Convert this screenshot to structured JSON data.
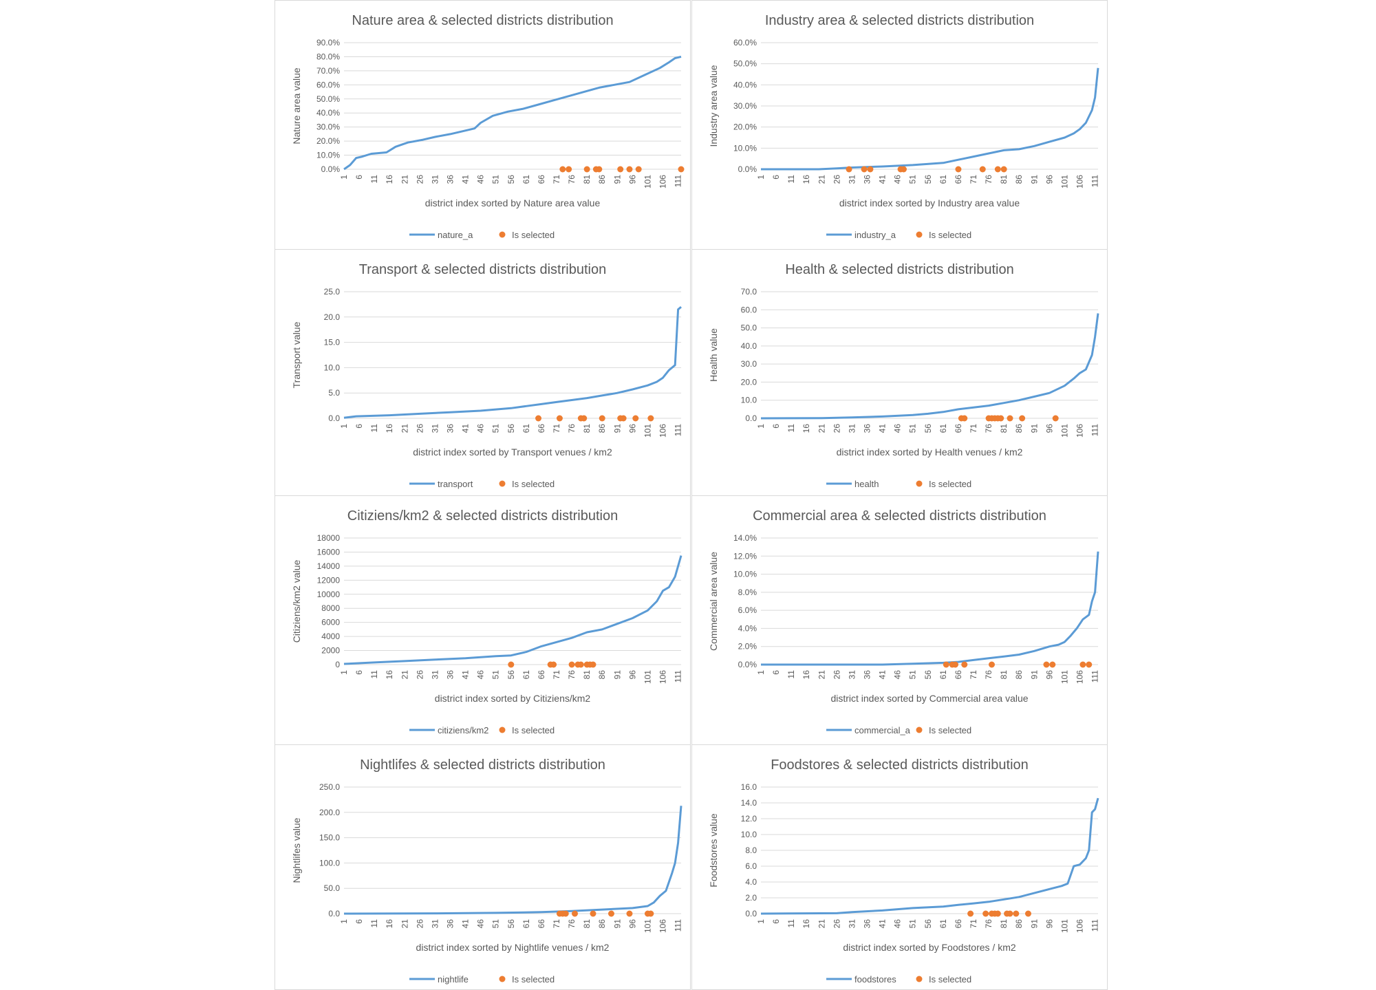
{
  "colors": {
    "line": "#5b9bd5",
    "dot": "#ed7d31",
    "grid": "#d9d9d9",
    "text": "#595959",
    "title": "#595959"
  },
  "x_tick_labels": [
    "1",
    "6",
    "11",
    "16",
    "21",
    "26",
    "31",
    "36",
    "41",
    "46",
    "51",
    "56",
    "61",
    "66",
    "71",
    "76",
    "81",
    "86",
    "91",
    "96",
    "101",
    "106",
    "111"
  ],
  "chart_data": [
    {
      "type": "line",
      "title": "Nature area & selected districts distribution",
      "xlabel": "district index sorted by Nature area value",
      "ylabel": "Nature area value",
      "x_range": [
        1,
        112
      ],
      "ylim": [
        0,
        0.9
      ],
      "y_ticks": [
        "0.0%",
        "10.0%",
        "20.0%",
        "30.0%",
        "40.0%",
        "50.0%",
        "60.0%",
        "70.0%",
        "80.0%",
        "90.0%"
      ],
      "grid": true,
      "legend": "bottom",
      "series": [
        {
          "name": "nature_a",
          "kind": "line",
          "x": [
            1,
            3,
            5,
            7,
            10,
            15,
            18,
            22,
            27,
            31,
            36,
            40,
            44,
            46,
            50,
            55,
            60,
            65,
            70,
            75,
            80,
            85,
            90,
            95,
            100,
            105,
            108,
            110,
            112
          ],
          "values": [
            0.0,
            0.03,
            0.08,
            0.09,
            0.11,
            0.12,
            0.16,
            0.19,
            0.21,
            0.23,
            0.25,
            0.27,
            0.29,
            0.33,
            0.38,
            0.41,
            0.43,
            0.46,
            0.49,
            0.52,
            0.55,
            0.58,
            0.6,
            0.62,
            0.67,
            0.72,
            0.76,
            0.79,
            0.8
          ]
        },
        {
          "name": "Is selected",
          "kind": "scatter",
          "x": [
            73,
            75,
            81,
            84,
            85,
            92,
            95,
            98,
            112
          ],
          "values": [
            0,
            0,
            0,
            0,
            0,
            0,
            0,
            0,
            0
          ]
        }
      ]
    },
    {
      "type": "line",
      "title": "Industry area & selected districts distribution",
      "xlabel": "district index sorted by Industry area value",
      "ylabel": "Industry area value",
      "x_range": [
        1,
        112
      ],
      "ylim": [
        0,
        0.6
      ],
      "y_ticks": [
        "0.0%",
        "10.0%",
        "20.0%",
        "30.0%",
        "40.0%",
        "50.0%",
        "60.0%"
      ],
      "grid": true,
      "legend": "bottom",
      "series": [
        {
          "name": "industry_a",
          "kind": "line",
          "x": [
            1,
            20,
            26,
            31,
            41,
            51,
            61,
            66,
            71,
            76,
            81,
            86,
            91,
            96,
            101,
            104,
            106,
            108,
            110,
            111,
            112
          ],
          "values": [
            0.0,
            0.0,
            0.004,
            0.008,
            0.013,
            0.02,
            0.03,
            0.045,
            0.06,
            0.075,
            0.09,
            0.095,
            0.11,
            0.13,
            0.15,
            0.17,
            0.19,
            0.22,
            0.28,
            0.34,
            0.48
          ]
        },
        {
          "name": "Is selected",
          "kind": "scatter",
          "x": [
            30,
            35,
            37,
            47,
            48,
            66,
            74,
            79,
            81
          ],
          "values": [
            0,
            0,
            0,
            0,
            0,
            0,
            0,
            0,
            0
          ]
        }
      ]
    },
    {
      "type": "line",
      "title": "Transport & selected districts distribution",
      "xlabel": "district index sorted by Transport venues / km2",
      "ylabel": "Transport value",
      "x_range": [
        1,
        112
      ],
      "ylim": [
        0,
        25
      ],
      "y_ticks": [
        "0.0",
        "5.0",
        "10.0",
        "15.0",
        "20.0",
        "25.0"
      ],
      "grid": true,
      "legend": "bottom",
      "series": [
        {
          "name": "transport",
          "kind": "line",
          "x": [
            1,
            5,
            16,
            26,
            36,
            46,
            56,
            61,
            66,
            71,
            76,
            81,
            86,
            91,
            96,
            101,
            104,
            106,
            108,
            110,
            111,
            112
          ],
          "values": [
            0.1,
            0.4,
            0.6,
            0.9,
            1.2,
            1.5,
            2.0,
            2.4,
            2.8,
            3.2,
            3.6,
            4.0,
            4.5,
            5.0,
            5.7,
            6.5,
            7.2,
            8.0,
            9.5,
            10.5,
            21.5,
            22.0
          ]
        },
        {
          "name": "Is selected",
          "kind": "scatter",
          "x": [
            65,
            72,
            79,
            80,
            86,
            92,
            93,
            97,
            102
          ],
          "values": [
            0,
            0,
            0,
            0,
            0,
            0,
            0,
            0,
            0
          ]
        }
      ]
    },
    {
      "type": "line",
      "title": "Health & selected districts distribution",
      "xlabel": "district index sorted by Health venues / km2",
      "ylabel": "Health value",
      "x_range": [
        1,
        112
      ],
      "ylim": [
        0,
        70
      ],
      "y_ticks": [
        "0.0",
        "10.0",
        "20.0",
        "30.0",
        "40.0",
        "50.0",
        "60.0",
        "70.0"
      ],
      "grid": true,
      "legend": "bottom",
      "series": [
        {
          "name": "health",
          "kind": "line",
          "x": [
            1,
            21,
            31,
            41,
            51,
            56,
            61,
            66,
            71,
            76,
            81,
            86,
            91,
            96,
            101,
            104,
            106,
            108,
            110,
            111,
            112
          ],
          "values": [
            0.0,
            0.1,
            0.5,
            1.0,
            1.8,
            2.5,
            3.5,
            5.0,
            6.0,
            7.0,
            8.5,
            10.0,
            12.0,
            14.0,
            18.0,
            22.0,
            25.0,
            27.0,
            35.0,
            45.0,
            58.0
          ]
        },
        {
          "name": "Is selected",
          "kind": "scatter",
          "x": [
            67,
            68,
            76,
            77,
            78,
            79,
            80,
            83,
            87,
            98
          ],
          "values": [
            0,
            0,
            0,
            0,
            0,
            0,
            0,
            0,
            0,
            0
          ]
        }
      ]
    },
    {
      "type": "line",
      "title": "Citiziens/km2 & selected districts distribution",
      "xlabel": "district index sorted by Citiziens/km2",
      "ylabel": "Citiziens/km2 value",
      "x_range": [
        1,
        112
      ],
      "ylim": [
        0,
        18000
      ],
      "y_ticks": [
        "0",
        "2000",
        "4000",
        "6000",
        "8000",
        "10000",
        "12000",
        "14000",
        "16000",
        "18000"
      ],
      "grid": true,
      "legend": "bottom",
      "series": [
        {
          "name": "citiziens/km2",
          "kind": "line",
          "x": [
            1,
            11,
            21,
            31,
            41,
            51,
            56,
            61,
            66,
            71,
            76,
            81,
            86,
            91,
            96,
            101,
            104,
            106,
            108,
            110,
            112
          ],
          "values": [
            100,
            300,
            500,
            700,
            900,
            1200,
            1300,
            1800,
            2600,
            3200,
            3800,
            4600,
            5000,
            5800,
            6600,
            7700,
            9000,
            10500,
            11000,
            12500,
            15500
          ]
        },
        {
          "name": "Is selected",
          "kind": "scatter",
          "x": [
            56,
            69,
            70,
            76,
            78,
            79,
            81,
            82,
            83
          ],
          "values": [
            0,
            0,
            0,
            0,
            0,
            0,
            0,
            0,
            0
          ]
        }
      ]
    },
    {
      "type": "line",
      "title": "Commercial area & selected districts distribution",
      "xlabel": "district index sorted by Commercial area value",
      "ylabel": "Commercial area value",
      "x_range": [
        1,
        112
      ],
      "ylim": [
        0,
        0.14
      ],
      "y_ticks": [
        "0.0%",
        "2.0%",
        "4.0%",
        "6.0%",
        "8.0%",
        "10.0%",
        "12.0%",
        "14.0%"
      ],
      "grid": true,
      "legend": "bottom",
      "series": [
        {
          "name": "commercial_a",
          "kind": "line",
          "x": [
            1,
            41,
            51,
            61,
            66,
            71,
            76,
            81,
            86,
            91,
            96,
            99,
            101,
            103,
            105,
            107,
            109,
            110,
            111,
            112
          ],
          "values": [
            0.0,
            0.0,
            0.001,
            0.002,
            0.003,
            0.005,
            0.007,
            0.009,
            0.011,
            0.015,
            0.02,
            0.022,
            0.025,
            0.032,
            0.04,
            0.05,
            0.055,
            0.07,
            0.08,
            0.125
          ]
        },
        {
          "name": "Is selected",
          "kind": "scatter",
          "x": [
            62,
            64,
            65,
            68,
            77,
            95,
            97,
            107,
            109
          ],
          "values": [
            0,
            0,
            0,
            0,
            0,
            0,
            0,
            0,
            0
          ]
        }
      ]
    },
    {
      "type": "line",
      "title": "Nightlifes & selected districts distribution",
      "xlabel": "district index sorted by Nightlife venues / km2",
      "ylabel": "Nightlifes value",
      "x_range": [
        1,
        112
      ],
      "ylim": [
        0,
        250
      ],
      "y_ticks": [
        "0.0",
        "50.0",
        "100.0",
        "150.0",
        "200.0",
        "250.0"
      ],
      "grid": true,
      "legend": "bottom",
      "series": [
        {
          "name": "nightlife",
          "kind": "line",
          "x": [
            1,
            31,
            51,
            66,
            76,
            86,
            96,
            101,
            103,
            105,
            107,
            109,
            110,
            111,
            112
          ],
          "values": [
            0.0,
            0.5,
            1.5,
            3.0,
            5.0,
            8.0,
            11.0,
            15.0,
            22.0,
            35.0,
            45.0,
            80.0,
            100.0,
            140.0,
            213.0
          ]
        },
        {
          "name": "Is selected",
          "kind": "scatter",
          "x": [
            72,
            73,
            74,
            77,
            83,
            89,
            95,
            101,
            102
          ],
          "values": [
            0,
            0,
            0,
            0,
            0,
            0,
            0,
            0,
            0
          ]
        }
      ]
    },
    {
      "type": "line",
      "title": "Foodstores & selected districts distribution",
      "xlabel": "district index sorted by Foodstores / km2",
      "ylabel": "Foodstores value",
      "x_range": [
        1,
        112
      ],
      "ylim": [
        0,
        16
      ],
      "y_ticks": [
        "0.0",
        "2.0",
        "4.0",
        "6.0",
        "8.0",
        "10.0",
        "12.0",
        "14.0",
        "16.0"
      ],
      "grid": true,
      "legend": "bottom",
      "series": [
        {
          "name": "foodstores",
          "kind": "line",
          "x": [
            1,
            26,
            31,
            41,
            51,
            61,
            66,
            71,
            76,
            81,
            86,
            91,
            96,
            100,
            102,
            104,
            106,
            108,
            109,
            110,
            111,
            112
          ],
          "values": [
            0.0,
            0.05,
            0.2,
            0.4,
            0.7,
            0.9,
            1.1,
            1.3,
            1.5,
            1.8,
            2.1,
            2.6,
            3.1,
            3.5,
            3.8,
            6.0,
            6.2,
            7.0,
            8.0,
            12.8,
            13.2,
            14.6
          ]
        },
        {
          "name": "Is selected",
          "kind": "scatter",
          "x": [
            70,
            75,
            77,
            78,
            79,
            82,
            83,
            85,
            89
          ],
          "values": [
            0,
            0,
            0,
            0,
            0,
            0,
            0,
            0,
            0
          ]
        }
      ]
    }
  ]
}
